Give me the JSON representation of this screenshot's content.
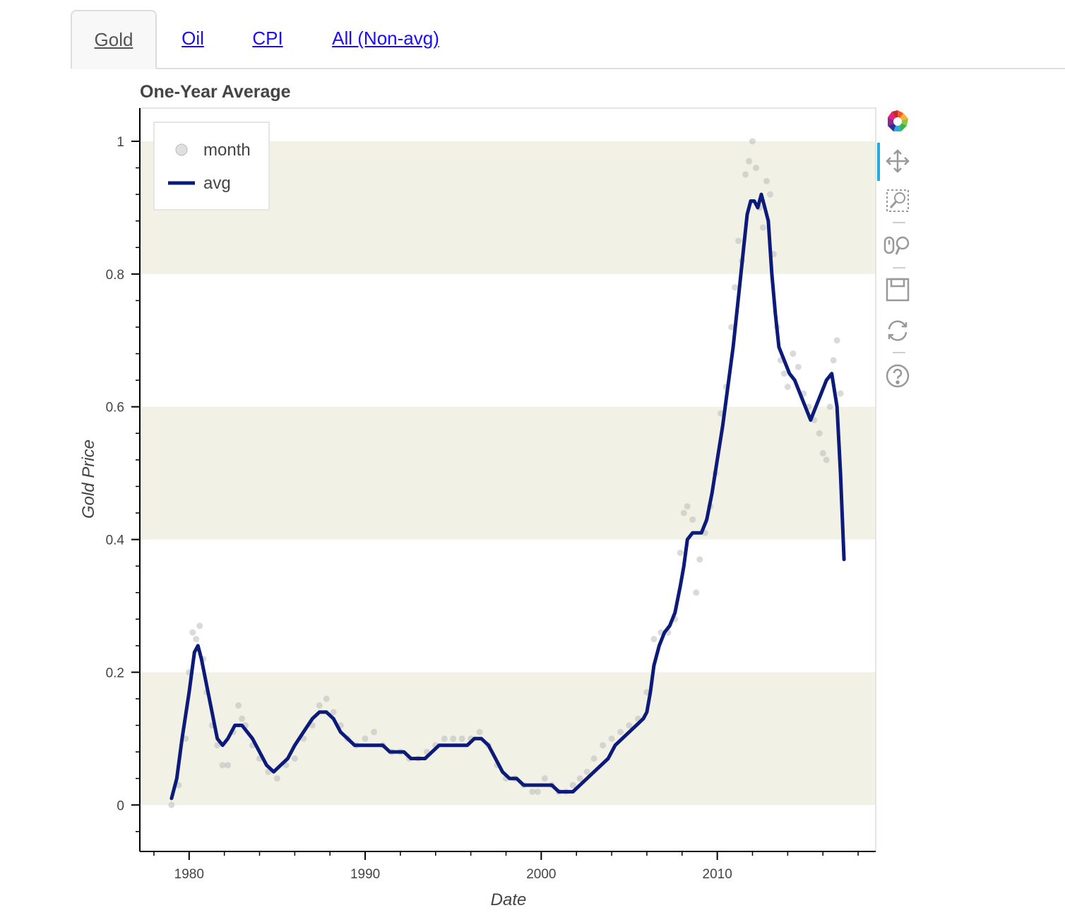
{
  "tabs": [
    {
      "label": "Gold",
      "active": true
    },
    {
      "label": "Oil",
      "active": false
    },
    {
      "label": "CPI",
      "active": false
    },
    {
      "label": "All (Non-avg)",
      "active": false
    }
  ],
  "toolbar": {
    "tools": [
      "bokeh-logo-icon",
      "pan-icon",
      "box-zoom-icon",
      "wheel-zoom-icon",
      "save-icon",
      "reset-icon",
      "help-icon"
    ],
    "active_tool": "pan-icon"
  },
  "chart_data": {
    "type": "line",
    "title": "One-Year Average",
    "xlabel": "Date",
    "ylabel": "Gold Price",
    "xlim": [
      1977.2,
      2019.0
    ],
    "ylim": [
      -0.07,
      1.05
    ],
    "x_ticks": [
      1980,
      1990,
      2000,
      2010
    ],
    "y_ticks": [
      0,
      0.2,
      0.4,
      0.6,
      0.8,
      1
    ],
    "y_tick_labels": [
      "0",
      "0.2",
      "0.4",
      "0.6",
      "0.8",
      "1"
    ],
    "bands": [
      [
        0,
        0.2
      ],
      [
        0.4,
        0.6
      ],
      [
        0.8,
        1.0
      ]
    ],
    "band_color": "#f2f1e5",
    "legend_position": "top-left",
    "series": [
      {
        "name": "month",
        "mark": "circle",
        "color": "#bbbbbb",
        "x": [
          1979.0,
          1979.4,
          1979.8,
          1980.0,
          1980.2,
          1980.4,
          1980.6,
          1980.8,
          1981.0,
          1981.3,
          1981.6,
          1981.9,
          1982.2,
          1982.5,
          1982.8,
          1983.0,
          1983.2,
          1983.6,
          1984.0,
          1984.5,
          1985.0,
          1985.5,
          1986.0,
          1986.5,
          1987.0,
          1987.4,
          1987.8,
          1988.2,
          1988.6,
          1989.0,
          1989.5,
          1990.0,
          1990.5,
          1991.0,
          1991.5,
          1992.0,
          1992.5,
          1993.0,
          1993.5,
          1994.0,
          1994.5,
          1995.0,
          1995.5,
          1996.0,
          1996.5,
          1997.0,
          1997.5,
          1998.0,
          1998.5,
          1999.0,
          1999.5,
          1999.8,
          2000.2,
          2000.6,
          2001.0,
          2001.4,
          2001.8,
          2002.2,
          2002.6,
          2003.0,
          2003.5,
          2004.0,
          2004.5,
          2005.0,
          2005.5,
          2006.0,
          2006.4,
          2006.8,
          2007.2,
          2007.6,
          2007.9,
          2008.1,
          2008.3,
          2008.6,
          2008.8,
          2009.0,
          2009.3,
          2009.6,
          2009.9,
          2010.2,
          2010.5,
          2010.8,
          2011.0,
          2011.2,
          2011.4,
          2011.6,
          2011.8,
          2012.0,
          2012.2,
          2012.4,
          2012.6,
          2012.8,
          2013.0,
          2013.2,
          2013.4,
          2013.6,
          2013.8,
          2014.0,
          2014.3,
          2014.6,
          2014.9,
          2015.2,
          2015.5,
          2015.8,
          2016.0,
          2016.2,
          2016.4,
          2016.6,
          2016.8,
          2017.0
        ],
        "y": [
          0.0,
          0.03,
          0.1,
          0.2,
          0.26,
          0.25,
          0.27,
          0.22,
          0.17,
          0.12,
          0.09,
          0.06,
          0.06,
          0.11,
          0.15,
          0.13,
          0.12,
          0.09,
          0.07,
          0.05,
          0.04,
          0.06,
          0.07,
          0.1,
          0.12,
          0.15,
          0.16,
          0.14,
          0.12,
          0.1,
          0.09,
          0.1,
          0.11,
          0.09,
          0.08,
          0.08,
          0.07,
          0.07,
          0.08,
          0.09,
          0.1,
          0.1,
          0.1,
          0.1,
          0.11,
          0.09,
          0.06,
          0.04,
          0.04,
          0.03,
          0.02,
          0.02,
          0.04,
          0.03,
          0.02,
          0.02,
          0.03,
          0.04,
          0.05,
          0.07,
          0.09,
          0.1,
          0.11,
          0.12,
          0.13,
          0.17,
          0.25,
          0.26,
          0.26,
          0.28,
          0.38,
          0.44,
          0.45,
          0.43,
          0.32,
          0.37,
          0.41,
          0.45,
          0.5,
          0.59,
          0.63,
          0.72,
          0.78,
          0.85,
          0.82,
          0.95,
          0.97,
          1.0,
          0.96,
          0.9,
          0.87,
          0.94,
          0.92,
          0.83,
          0.72,
          0.67,
          0.65,
          0.63,
          0.68,
          0.66,
          0.62,
          0.6,
          0.58,
          0.56,
          0.53,
          0.52,
          0.6,
          0.67,
          0.7,
          0.62
        ]
      },
      {
        "name": "avg",
        "mark": "line",
        "color": "#0c1a7a",
        "x": [
          1979.0,
          1979.3,
          1979.6,
          1980.0,
          1980.3,
          1980.5,
          1980.7,
          1981.0,
          1981.3,
          1981.6,
          1981.9,
          1982.2,
          1982.6,
          1983.0,
          1983.3,
          1983.6,
          1984.0,
          1984.4,
          1984.8,
          1985.2,
          1985.6,
          1986.0,
          1986.5,
          1987.0,
          1987.4,
          1987.8,
          1988.2,
          1988.6,
          1989.0,
          1989.4,
          1989.8,
          1990.2,
          1990.6,
          1991.0,
          1991.4,
          1991.8,
          1992.2,
          1992.6,
          1993.0,
          1993.4,
          1993.8,
          1994.2,
          1994.6,
          1995.0,
          1995.4,
          1995.8,
          1996.2,
          1996.6,
          1997.0,
          1997.4,
          1997.8,
          1998.2,
          1998.6,
          1999.0,
          1999.4,
          1999.8,
          2000.2,
          2000.6,
          2001.0,
          2001.4,
          2001.8,
          2002.2,
          2002.6,
          2003.0,
          2003.4,
          2003.8,
          2004.2,
          2004.6,
          2005.0,
          2005.4,
          2005.8,
          2006.0,
          2006.2,
          2006.4,
          2006.7,
          2007.0,
          2007.3,
          2007.6,
          2007.9,
          2008.1,
          2008.3,
          2008.6,
          2008.9,
          2009.1,
          2009.4,
          2009.7,
          2010.0,
          2010.3,
          2010.6,
          2010.9,
          2011.1,
          2011.3,
          2011.5,
          2011.7,
          2011.9,
          2012.1,
          2012.3,
          2012.5,
          2012.7,
          2012.9,
          2013.1,
          2013.3,
          2013.5,
          2013.8,
          2014.1,
          2014.4,
          2014.7,
          2015.0,
          2015.3,
          2015.6,
          2015.9,
          2016.2,
          2016.5,
          2016.8,
          2017.0,
          2017.2
        ],
        "y": [
          0.01,
          0.04,
          0.1,
          0.17,
          0.23,
          0.24,
          0.22,
          0.18,
          0.14,
          0.1,
          0.09,
          0.1,
          0.12,
          0.12,
          0.11,
          0.1,
          0.08,
          0.06,
          0.05,
          0.06,
          0.07,
          0.09,
          0.11,
          0.13,
          0.14,
          0.14,
          0.13,
          0.11,
          0.1,
          0.09,
          0.09,
          0.09,
          0.09,
          0.09,
          0.08,
          0.08,
          0.08,
          0.07,
          0.07,
          0.07,
          0.08,
          0.09,
          0.09,
          0.09,
          0.09,
          0.09,
          0.1,
          0.1,
          0.09,
          0.07,
          0.05,
          0.04,
          0.04,
          0.03,
          0.03,
          0.03,
          0.03,
          0.03,
          0.02,
          0.02,
          0.02,
          0.03,
          0.04,
          0.05,
          0.06,
          0.07,
          0.09,
          0.1,
          0.11,
          0.12,
          0.13,
          0.14,
          0.17,
          0.21,
          0.24,
          0.26,
          0.27,
          0.29,
          0.33,
          0.36,
          0.4,
          0.41,
          0.41,
          0.41,
          0.43,
          0.47,
          0.52,
          0.57,
          0.63,
          0.69,
          0.74,
          0.79,
          0.84,
          0.89,
          0.91,
          0.91,
          0.9,
          0.92,
          0.9,
          0.88,
          0.8,
          0.74,
          0.69,
          0.67,
          0.65,
          0.64,
          0.62,
          0.6,
          0.58,
          0.6,
          0.62,
          0.64,
          0.65,
          0.6,
          0.5,
          0.37
        ]
      }
    ]
  }
}
